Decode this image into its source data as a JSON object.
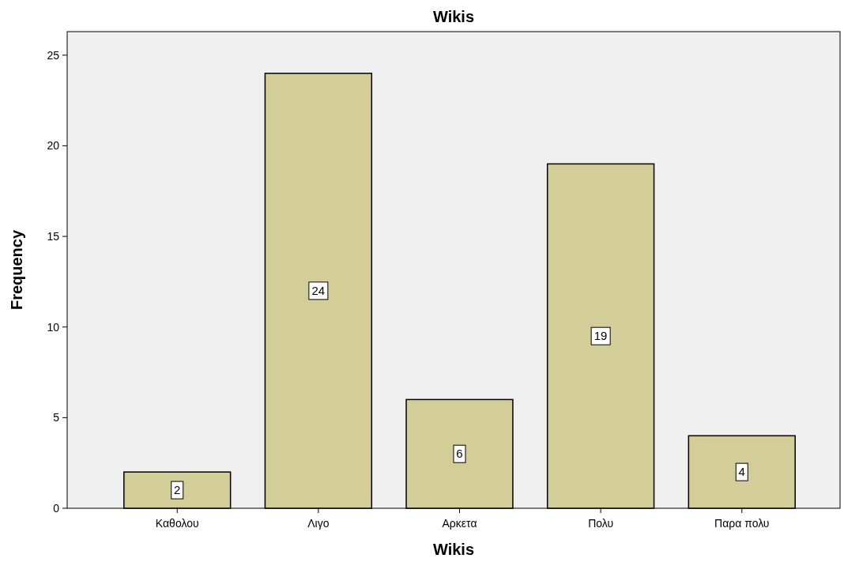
{
  "chart_data": {
    "type": "bar",
    "title": "Wikis",
    "xlabel": "Wikis",
    "ylabel": "Frequency",
    "categories": [
      "Καθολου",
      "Λιγο",
      "Αρκετα",
      "Πολυ",
      "Παρα πολυ"
    ],
    "values": [
      2,
      24,
      6,
      19,
      4
    ],
    "color": "#d3ce97",
    "ylim": [
      0,
      26.3
    ],
    "yticks": [
      0,
      5,
      10,
      15,
      20,
      25
    ],
    "data_labels": true
  }
}
